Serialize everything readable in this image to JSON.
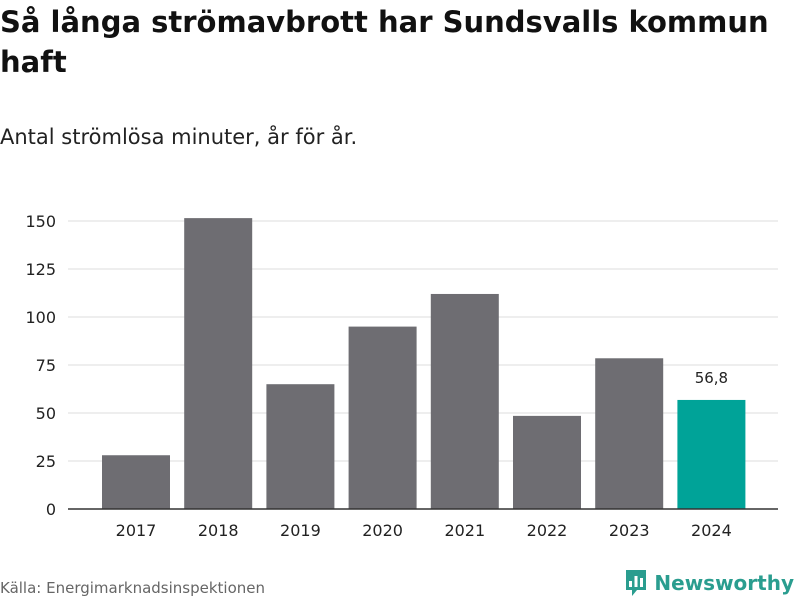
{
  "header": {
    "title": "Så långa strömavbrott har Sundsvalls kommun haft",
    "subtitle": "Antal strömlösa minuter, år för år."
  },
  "footer": {
    "source": "Källa: Energimarknadsinspektionen",
    "brand": "Newsworthy"
  },
  "colors": {
    "bar_default": "#6e6d72",
    "bar_highlight": "#00a398",
    "grid": "#dddddd",
    "axis": "#333333",
    "brand": "#2a9d8f"
  },
  "chart_data": {
    "type": "bar",
    "title": "Så långa strömavbrott har Sundsvalls kommun haft",
    "subtitle": "Antal strömlösa minuter, år för år.",
    "xlabel": "",
    "ylabel": "",
    "categories": [
      "2017",
      "2018",
      "2019",
      "2020",
      "2021",
      "2022",
      "2023",
      "2024"
    ],
    "values": [
      28,
      151.5,
      65,
      95,
      112,
      48.5,
      78.5,
      56.8
    ],
    "highlight_index": 7,
    "data_labels": [
      {
        "index": 7,
        "text": "56,8"
      }
    ],
    "ylim": [
      0,
      150
    ],
    "yticks": [
      0,
      25,
      50,
      75,
      100,
      125,
      150
    ],
    "ytick_labels": [
      "0",
      "25",
      "50",
      "75",
      "100",
      "125",
      "150"
    ],
    "grid": true,
    "legend": "none"
  }
}
